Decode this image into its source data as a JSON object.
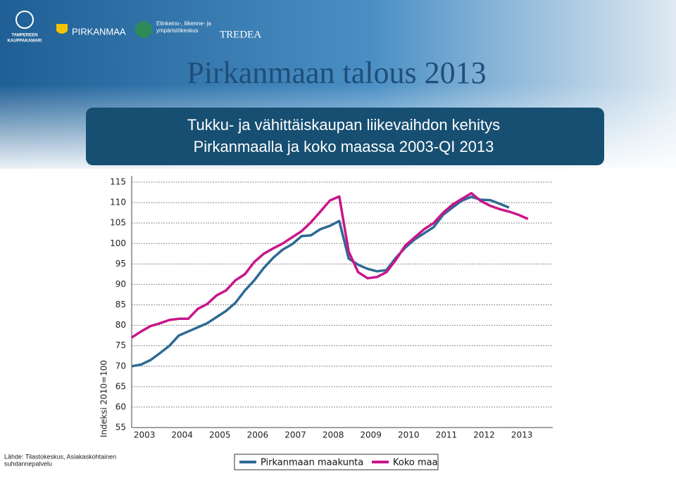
{
  "header": {
    "logos": [
      "TAMPEREEN",
      "KAUPPAKAMARI",
      "PIRKANMAA",
      "Elinkeino-, liikenne- ja",
      "ympäristökeskus",
      "TREDEA"
    ],
    "heading": "Pirkanmaan talous 2013"
  },
  "chart_data": {
    "type": "line",
    "title": [
      "Tukku- ja vähittäiskaupan liikevaihdon kehitys",
      "Pirkanmaalla ja koko maassa 2003-QI 2013"
    ],
    "y_label": "Indeksi 2010=100",
    "categories": [
      "2003",
      null,
      null,
      null,
      "2004",
      null,
      null,
      null,
      "2005",
      null,
      null,
      null,
      "2006",
      null,
      null,
      null,
      "2007",
      null,
      null,
      null,
      "2008",
      null,
      null,
      null,
      "2009",
      null,
      null,
      null,
      "2010",
      null,
      null,
      null,
      "2011",
      null,
      null,
      null,
      "2012",
      null,
      null,
      null,
      "2013",
      null,
      null
    ],
    "series": [
      {
        "name": "Pirkanmaan maakunta",
        "color": "#2e6a94",
        "values": [
          70,
          70.4,
          71.5,
          73.2,
          75,
          77.5,
          78.5,
          79.5,
          80.5,
          82,
          83.5,
          85.5,
          88.5,
          91,
          94,
          96.5,
          98.5,
          99.8,
          101.8,
          102,
          103.5,
          104.3,
          105.5,
          96.3,
          94.8,
          93.8,
          93.2,
          93.5,
          96.5,
          99,
          101,
          102.5,
          104,
          107,
          108.8,
          110.5,
          111.4,
          110.7,
          110.6,
          109.7,
          108.8,
          null,
          null
        ]
      },
      {
        "name": "Koko maa",
        "color": "#c8168a",
        "values": [
          77,
          78.5,
          79.8,
          80.5,
          81.3,
          81.6,
          81.6,
          84,
          85.2,
          87.3,
          88.5,
          91,
          92.5,
          95.5,
          97.5,
          98.8,
          100,
          101.5,
          103,
          105.2,
          107.8,
          110.5,
          111.5,
          98,
          93,
          91.5,
          91.8,
          93,
          96,
          99.5,
          101.5,
          103.5,
          105,
          107.5,
          109.5,
          110.9,
          112.3,
          110.4,
          109.2,
          108.4,
          107.8,
          107,
          106
        ]
      }
    ],
    "ylim": [
      55,
      115
    ],
    "yticks": [
      55,
      60,
      65,
      70,
      75,
      80,
      85,
      90,
      95,
      100,
      105,
      110,
      115
    ],
    "grid": true,
    "source": [
      "Lähde: Tilastokeskus, Asiakaskohtainen",
      "suhdannepalvelu"
    ]
  }
}
